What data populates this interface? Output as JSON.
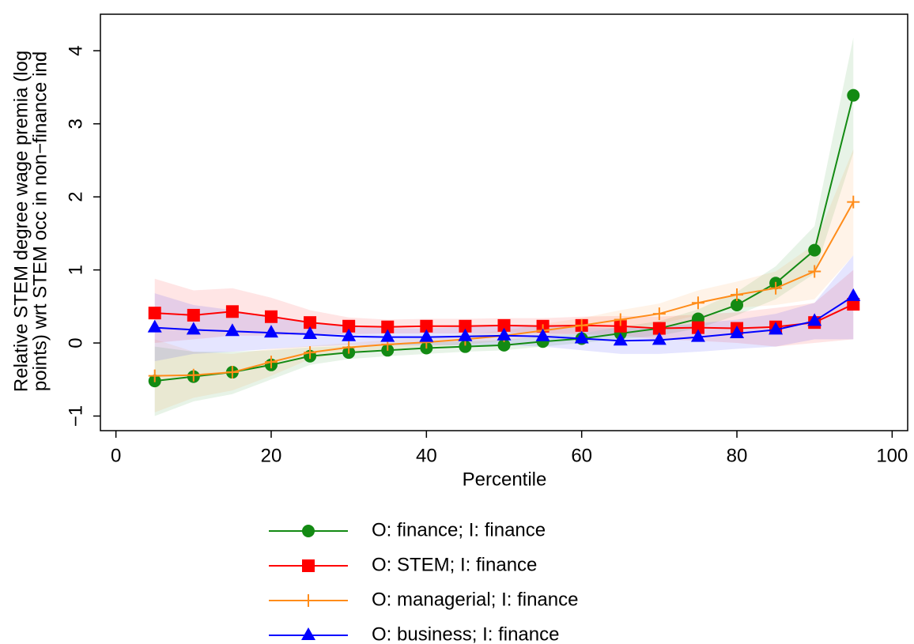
{
  "chart_data": {
    "type": "line",
    "x_label": "Percentile",
    "y_label": [
      "Relative STEM degree wage premia (log",
      "points) wrt STEM occ in non−finance ind"
    ],
    "x": [
      5,
      10,
      15,
      20,
      25,
      30,
      35,
      40,
      45,
      50,
      55,
      60,
      65,
      70,
      75,
      80,
      85,
      90,
      95
    ],
    "xlim": [
      -2,
      102
    ],
    "xticks": [
      0,
      20,
      40,
      60,
      80,
      100
    ],
    "ylim": [
      -1.2,
      4.5
    ],
    "yticks": [
      {
        "value": -1,
        "label": "−1"
      },
      0,
      1,
      2,
      3,
      4
    ],
    "series": [
      {
        "name": "O: finance; I: finance",
        "color": "#138a13",
        "marker": "circle",
        "values": [
          -0.52,
          -0.46,
          -0.4,
          -0.3,
          -0.18,
          -0.13,
          -0.1,
          -0.07,
          -0.05,
          -0.03,
          0.02,
          0.06,
          0.13,
          0.2,
          0.33,
          0.52,
          0.82,
          1.27,
          3.39
        ],
        "lower": [
          -1.0,
          -0.8,
          -0.7,
          -0.5,
          -0.3,
          -0.22,
          -0.18,
          -0.15,
          -0.12,
          -0.1,
          -0.05,
          0.0,
          0.05,
          0.1,
          0.2,
          0.38,
          0.6,
          0.95,
          2.6
        ],
        "upper": [
          -0.05,
          -0.12,
          -0.12,
          -0.1,
          -0.06,
          -0.04,
          -0.02,
          0.01,
          0.02,
          0.04,
          0.09,
          0.13,
          0.22,
          0.3,
          0.46,
          0.7,
          1.05,
          1.6,
          4.18
        ]
      },
      {
        "name": "O: STEM; I: finance",
        "color": "#ff0000",
        "marker": "square",
        "values": [
          0.41,
          0.38,
          0.43,
          0.36,
          0.28,
          0.23,
          0.22,
          0.23,
          0.23,
          0.24,
          0.23,
          0.24,
          0.23,
          0.2,
          0.21,
          0.2,
          0.22,
          0.28,
          0.53
        ],
        "lower": [
          0.0,
          0.05,
          0.1,
          0.1,
          0.12,
          0.12,
          0.13,
          0.13,
          0.13,
          0.14,
          0.13,
          0.12,
          0.1,
          0.05,
          0.03,
          0.0,
          -0.05,
          0.0,
          0.05
        ],
        "upper": [
          0.88,
          0.72,
          0.75,
          0.62,
          0.45,
          0.35,
          0.32,
          0.33,
          0.33,
          0.34,
          0.34,
          0.36,
          0.37,
          0.36,
          0.39,
          0.42,
          0.48,
          0.55,
          1.0
        ]
      },
      {
        "name": "O: managerial; I: finance",
        "color": "#ff8c1a",
        "marker": "plus",
        "values": [
          -0.45,
          -0.44,
          -0.4,
          -0.26,
          -0.13,
          -0.06,
          -0.02,
          0.01,
          0.05,
          0.1,
          0.17,
          0.24,
          0.32,
          0.4,
          0.55,
          0.66,
          0.75,
          0.98,
          1.93
        ],
        "lower": [
          -0.95,
          -0.75,
          -0.65,
          -0.45,
          -0.22,
          -0.13,
          -0.08,
          -0.05,
          -0.02,
          0.03,
          0.08,
          0.14,
          0.2,
          0.26,
          0.38,
          0.48,
          0.52,
          0.6,
          1.2
        ],
        "upper": [
          0.05,
          -0.12,
          -0.15,
          -0.08,
          -0.04,
          0.0,
          0.04,
          0.07,
          0.12,
          0.17,
          0.26,
          0.34,
          0.45,
          0.54,
          0.72,
          0.84,
          0.98,
          1.35,
          2.65
        ]
      },
      {
        "name": "O: business; I: finance",
        "color": "#0000ff",
        "marker": "triangle",
        "values": [
          0.21,
          0.18,
          0.16,
          0.14,
          0.12,
          0.09,
          0.08,
          0.08,
          0.09,
          0.1,
          0.09,
          0.06,
          0.03,
          0.04,
          0.08,
          0.13,
          0.18,
          0.3,
          0.64
        ],
        "lower": [
          -0.25,
          -0.15,
          -0.12,
          -0.08,
          -0.05,
          -0.03,
          -0.03,
          -0.03,
          -0.03,
          -0.03,
          -0.05,
          -0.1,
          -0.15,
          -0.15,
          -0.12,
          -0.08,
          -0.05,
          0.05,
          0.05
        ],
        "upper": [
          0.68,
          0.52,
          0.45,
          0.36,
          0.3,
          0.22,
          0.2,
          0.2,
          0.22,
          0.24,
          0.23,
          0.22,
          0.2,
          0.22,
          0.27,
          0.32,
          0.4,
          0.55,
          1.2
        ]
      }
    ]
  }
}
